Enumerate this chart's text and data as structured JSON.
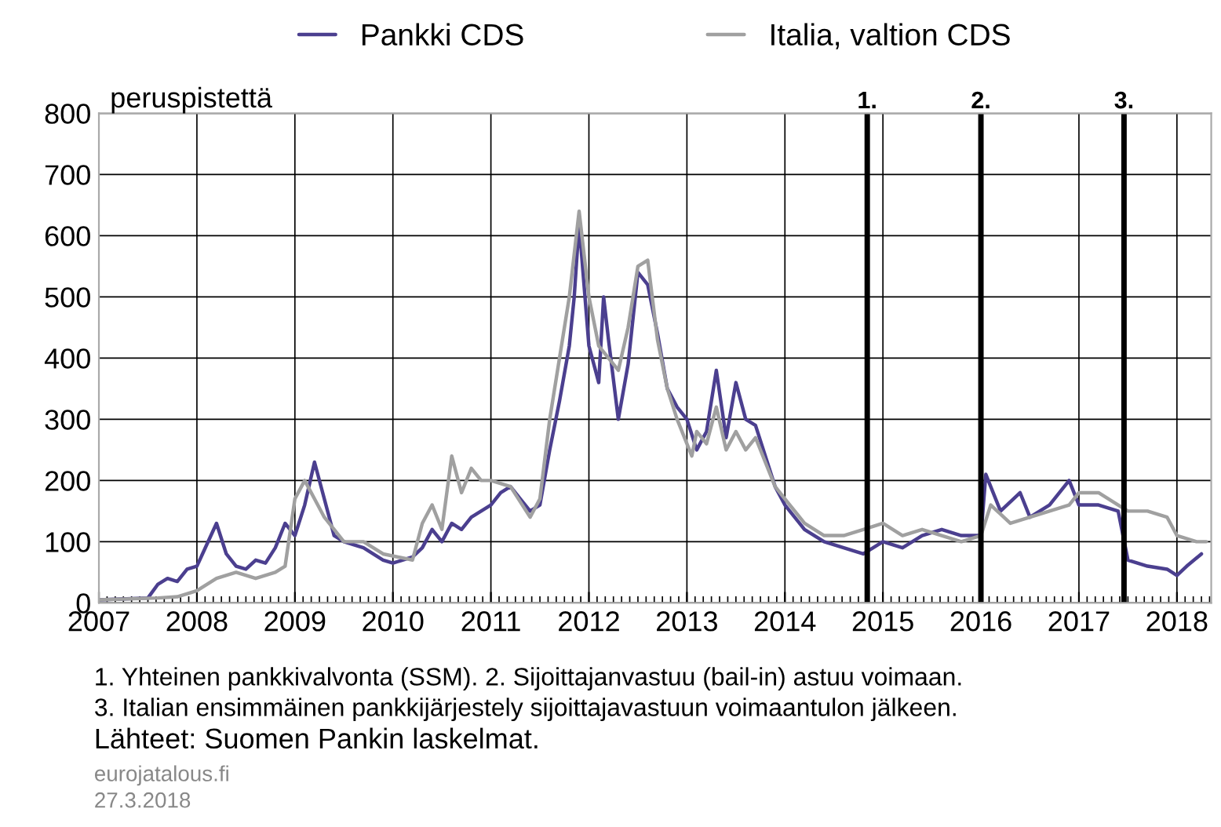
{
  "chart_data": {
    "type": "line",
    "ylabel": "peruspistettä",
    "x": [
      2007.0,
      2007.5,
      2007.6,
      2007.7,
      2007.8,
      2007.9,
      2008.0,
      2008.1,
      2008.2,
      2008.3,
      2008.4,
      2008.5,
      2008.6,
      2008.7,
      2008.8,
      2008.9,
      2009.0,
      2009.1,
      2009.2,
      2009.3,
      2009.4,
      2009.5,
      2009.7,
      2009.9,
      2010.0,
      2010.2,
      2010.3,
      2010.4,
      2010.5,
      2010.6,
      2010.7,
      2010.8,
      2010.9,
      2011.0,
      2011.1,
      2011.2,
      2011.3,
      2011.4,
      2011.5,
      2011.6,
      2011.7,
      2011.8,
      2011.85,
      2011.9,
      2012.0,
      2012.1,
      2012.15,
      2012.2,
      2012.3,
      2012.4,
      2012.5,
      2012.6,
      2012.7,
      2012.8,
      2012.9,
      2013.0,
      2013.1,
      2013.2,
      2013.3,
      2013.4,
      2013.5,
      2013.6,
      2013.7,
      2013.8,
      2013.9,
      2014.0,
      2014.2,
      2014.4,
      2014.6,
      2014.8,
      2015.0,
      2015.2,
      2015.4,
      2015.6,
      2015.8,
      2016.0,
      2016.05,
      2016.2,
      2016.4,
      2016.5,
      2016.7,
      2016.9,
      2017.0,
      2017.2,
      2017.4,
      2017.5,
      2017.7,
      2017.9,
      2018.0,
      2018.1,
      2018.25
    ],
    "series": [
      {
        "name": "Pankki CDS",
        "color": "#4b3f8f",
        "values": [
          5,
          8,
          30,
          40,
          35,
          55,
          60,
          95,
          130,
          80,
          60,
          55,
          70,
          65,
          90,
          130,
          110,
          160,
          230,
          170,
          110,
          100,
          90,
          70,
          65,
          75,
          90,
          120,
          100,
          130,
          120,
          140,
          150,
          160,
          180,
          190,
          170,
          150,
          160,
          250,
          330,
          420,
          500,
          620,
          420,
          360,
          500,
          430,
          300,
          390,
          540,
          520,
          440,
          350,
          320,
          300,
          250,
          280,
          380,
          270,
          360,
          300,
          290,
          240,
          190,
          160,
          120,
          100,
          90,
          80,
          100,
          90,
          110,
          120,
          110,
          110,
          210,
          150,
          180,
          140,
          160,
          200,
          160,
          160,
          150,
          70,
          60,
          55,
          45,
          60,
          80
        ]
      },
      {
        "name": "Italia, valtion CDS",
        "color": "#a0a0a0",
        "x": [
          2007.0,
          2007.6,
          2007.8,
          2008.0,
          2008.2,
          2008.4,
          2008.6,
          2008.8,
          2008.9,
          2009.0,
          2009.1,
          2009.2,
          2009.3,
          2009.5,
          2009.7,
          2009.9,
          2010.2,
          2010.3,
          2010.4,
          2010.5,
          2010.6,
          2010.7,
          2010.8,
          2010.9,
          2011.0,
          2011.2,
          2011.4,
          2011.5,
          2011.6,
          2011.7,
          2011.8,
          2011.9,
          2012.0,
          2012.1,
          2012.2,
          2012.3,
          2012.4,
          2012.5,
          2012.6,
          2012.7,
          2012.8,
          2012.9,
          2013.05,
          2013.1,
          2013.2,
          2013.3,
          2013.4,
          2013.5,
          2013.6,
          2013.7,
          2013.8,
          2013.9,
          2014.0,
          2014.2,
          2014.4,
          2014.6,
          2014.8,
          2015.0,
          2015.2,
          2015.4,
          2015.6,
          2015.8,
          2016.0,
          2016.1,
          2016.3,
          2016.5,
          2016.7,
          2016.9,
          2017.0,
          2017.2,
          2017.4,
          2017.5,
          2017.7,
          2017.9,
          2018.0,
          2018.2,
          2018.3
        ],
        "values": [
          5,
          8,
          10,
          20,
          40,
          50,
          40,
          50,
          60,
          170,
          200,
          170,
          140,
          100,
          100,
          80,
          70,
          130,
          160,
          120,
          240,
          180,
          220,
          200,
          200,
          190,
          140,
          170,
          300,
          400,
          500,
          640,
          500,
          420,
          400,
          380,
          450,
          550,
          560,
          430,
          350,
          300,
          240,
          280,
          260,
          320,
          250,
          280,
          250,
          270,
          230,
          190,
          170,
          130,
          110,
          110,
          120,
          130,
          110,
          120,
          110,
          100,
          110,
          160,
          130,
          140,
          150,
          160,
          180,
          180,
          160,
          150,
          150,
          140,
          110,
          100,
          100
        ]
      }
    ],
    "xlim": [
      2007,
      2018.35
    ],
    "xticks": [
      2007,
      2008,
      2009,
      2010,
      2011,
      2012,
      2013,
      2014,
      2015,
      2016,
      2017,
      2018
    ],
    "ylim": [
      0,
      800
    ],
    "yticks": [
      0,
      100,
      200,
      300,
      400,
      500,
      600,
      700,
      800
    ],
    "grid": true,
    "legend": "top",
    "ref_lines": [
      {
        "axis": "x",
        "value": 2014.84,
        "color": "#000000"
      },
      {
        "axis": "x",
        "value": 2016.0,
        "color": "#000000"
      },
      {
        "axis": "x",
        "value": 2017.46,
        "color": "#000000"
      }
    ],
    "annotations": [
      {
        "text": "1.",
        "x": 2014.84,
        "y": 800
      },
      {
        "text": "2.",
        "x": 2016.0,
        "y": 800
      },
      {
        "text": "3.",
        "x": 2017.46,
        "y": 800
      },
      "1. Yhteinen pankkivalvonta (SSM). 2. Sijoittajanvastuu (bail-in) astuu voimaan.",
      "3. Italian ensimmäinen pankkijärjestely sijoittajavastuun voimaantulon jälkeen.",
      "Lähteet: Suomen Pankin laskelmat.",
      "eurojatalous.fi",
      "27.3.2018"
    ]
  }
}
